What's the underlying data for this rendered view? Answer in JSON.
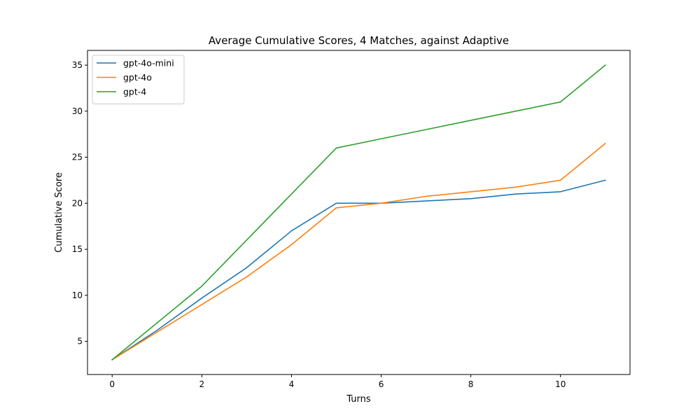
{
  "chart_data": {
    "type": "line",
    "title": "Average Cumulative Scores, 4 Matches, against Adaptive",
    "xlabel": "Turns",
    "ylabel": "Cumulative Score",
    "x": [
      0,
      1,
      2,
      3,
      4,
      5,
      6,
      7,
      8,
      9,
      10,
      11
    ],
    "xlim": [
      -0.55,
      11.55
    ],
    "ylim": [
      1.4,
      36.6
    ],
    "xticks": [
      0,
      2,
      4,
      6,
      8,
      10
    ],
    "yticks": [
      5,
      10,
      15,
      20,
      25,
      30,
      35
    ],
    "grid": false,
    "legend_position": "top-left",
    "series": [
      {
        "name": "gpt-4o-mini",
        "color": "#1f77b4",
        "values": [
          3,
          6.2,
          9.7,
          13,
          17,
          20,
          20,
          20.25,
          20.5,
          21,
          21.25,
          22.5
        ]
      },
      {
        "name": "gpt-4o",
        "color": "#ff7f0e",
        "values": [
          3,
          6,
          9,
          12,
          15.5,
          19.5,
          20,
          20.75,
          21.25,
          21.75,
          22.5,
          26.5
        ]
      },
      {
        "name": "gpt-4",
        "color": "#2ca02c",
        "values": [
          3,
          7,
          11,
          16,
          21,
          26,
          27,
          28,
          29,
          30,
          31,
          35
        ]
      }
    ]
  }
}
